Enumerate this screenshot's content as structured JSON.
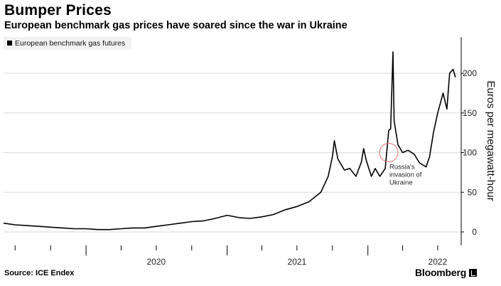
{
  "title": "Bumper Prices",
  "subtitle": "European benchmark gas prices have soared since the war in Ukraine",
  "source": "Source: ICE Endex",
  "brand": "Bloomberg",
  "chart_data": {
    "type": "line",
    "series": [
      {
        "name": "European benchmark gas futures",
        "x": [
          "2019-06-01",
          "2019-07-01",
          "2019-08-01",
          "2019-09-01",
          "2019-10-01",
          "2019-11-01",
          "2019-12-01",
          "2020-01-01",
          "2020-02-01",
          "2020-03-01",
          "2020-04-01",
          "2020-05-01",
          "2020-06-01",
          "2020-07-01",
          "2020-08-01",
          "2020-09-01",
          "2020-10-01",
          "2020-11-01",
          "2020-12-01",
          "2021-01-01",
          "2021-02-01",
          "2021-03-01",
          "2021-04-01",
          "2021-05-01",
          "2021-06-01",
          "2021-07-01",
          "2021-08-01",
          "2021-09-01",
          "2021-09-20",
          "2021-10-01",
          "2021-10-06",
          "2021-10-15",
          "2021-11-01",
          "2021-11-15",
          "2021-12-01",
          "2021-12-15",
          "2021-12-21",
          "2021-12-28",
          "2022-01-10",
          "2022-01-20",
          "2022-02-01",
          "2022-02-15",
          "2022-02-24",
          "2022-03-01",
          "2022-03-07",
          "2022-03-10",
          "2022-03-20",
          "2022-04-01",
          "2022-04-15",
          "2022-05-01",
          "2022-05-15",
          "2022-06-01",
          "2022-06-10",
          "2022-06-20",
          "2022-07-01",
          "2022-07-15",
          "2022-07-25",
          "2022-08-01",
          "2022-08-10",
          "2022-08-16"
        ],
        "values": [
          11,
          9,
          8,
          7,
          6,
          5,
          4,
          4,
          3,
          3,
          4,
          5,
          5,
          7,
          9,
          11,
          13,
          14,
          17,
          21,
          18,
          17,
          19,
          22,
          28,
          32,
          38,
          50,
          70,
          95,
          115,
          92,
          78,
          80,
          70,
          88,
          105,
          90,
          70,
          80,
          70,
          80,
          128,
          130,
          227,
          140,
          110,
          100,
          103,
          98,
          87,
          82,
          95,
          125,
          150,
          175,
          155,
          200,
          205,
          195
        ]
      }
    ],
    "legend": "top-left",
    "annotations": [
      {
        "text": [
          "Russia's",
          "invasion of",
          "Ukraine"
        ],
        "x": "2022-02-24",
        "y": 100
      }
    ],
    "x_ticks": [
      "2020",
      "2021",
      "2022"
    ],
    "y_ticks": [
      0,
      50,
      100,
      150,
      200
    ],
    "xlim": [
      "2019-06-01",
      "2022-08-31"
    ],
    "ylim": [
      -10,
      250
    ],
    "y_axis_side": "right",
    "ylabel": "Euros per megawatt-hour",
    "xlabel": "",
    "grid": "horizontal",
    "colors": {
      "line": "#000000",
      "grid": "#d9d9d9",
      "annotation_circle": "#e06a6a",
      "legend_bg": "#f2f2f2"
    }
  }
}
